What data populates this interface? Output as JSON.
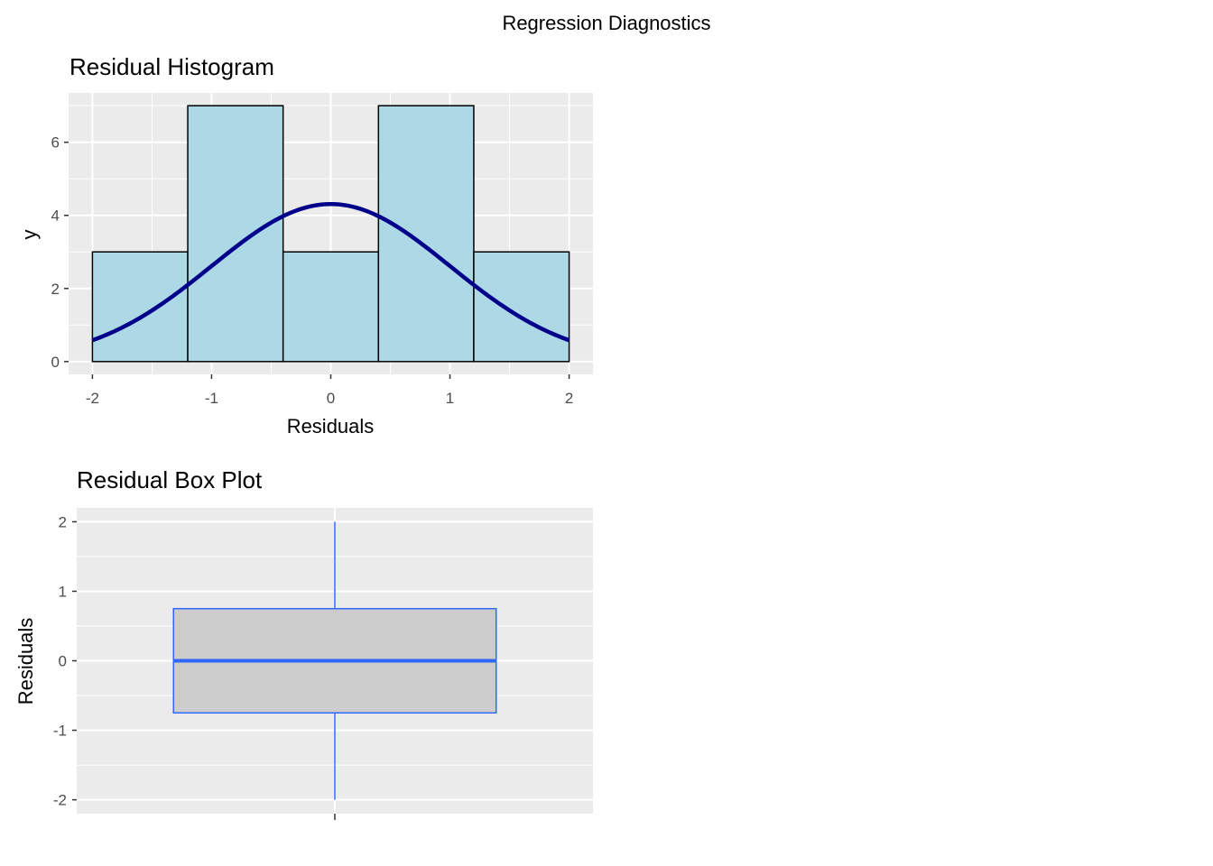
{
  "figure": {
    "title": "Regression Diagnostics"
  },
  "chart_data": [
    {
      "type": "histogram",
      "title": "Residual Histogram",
      "xlabel": "Residuals",
      "ylabel": "y",
      "xlim": [
        -2.2,
        2.2
      ],
      "ylim": [
        -0.35,
        7.35
      ],
      "xticks": [
        -2,
        -1,
        0,
        1,
        2
      ],
      "yticks": [
        0,
        2,
        4,
        6
      ],
      "bins": [
        {
          "x0": -2.0,
          "x1": -1.2,
          "count": 3
        },
        {
          "x0": -1.2,
          "x1": -0.4,
          "count": 7
        },
        {
          "x0": -0.4,
          "x1": 0.4,
          "count": 3
        },
        {
          "x0": 0.4,
          "x1": 1.2,
          "count": 7
        },
        {
          "x0": 1.2,
          "x1": 2.0,
          "count": 3
        }
      ],
      "density_overlay": {
        "type": "normal",
        "mean": 0,
        "sd": 1,
        "scale": 10.8,
        "x_range": [
          -2,
          2
        ]
      },
      "colors": {
        "fill": "#add8e6",
        "outline": "#000000",
        "curve": "#00008b",
        "panel": "#ebebeb",
        "grid": "#ffffff"
      },
      "grid": true
    },
    {
      "type": "box",
      "title": "Residual Box Plot",
      "xlabel": "",
      "ylabel": "Residuals",
      "ylim": [
        -2.2,
        2.2
      ],
      "yticks": [
        -2,
        -1,
        0,
        1,
        2
      ],
      "stats": {
        "min": -2,
        "q1": -0.75,
        "median": 0,
        "q3": 0.75,
        "max": 2
      },
      "colors": {
        "fill": "#cccccc",
        "outline": "#3366ff",
        "panel": "#ebebeb",
        "grid": "#ffffff"
      },
      "grid": true
    }
  ]
}
